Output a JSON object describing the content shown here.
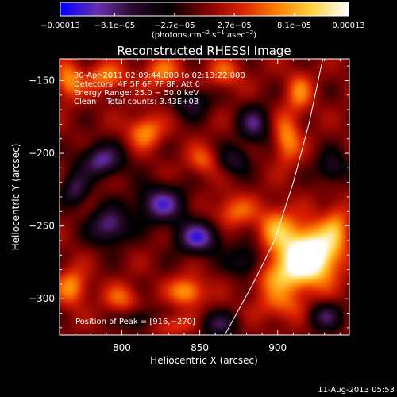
{
  "chart_data": {
    "type": "heatmap",
    "title": "Reconstructed RHESSI Image",
    "xlabel": "Heliocentric X (arcsec)",
    "ylabel": "Heliocentric Y (arcsec)",
    "xlim": [
      760,
      946
    ],
    "ylim": [
      -325,
      -135
    ],
    "x_ticks": [
      800,
      850,
      900
    ],
    "y_ticks": [
      -150,
      -200,
      -250,
      -300
    ],
    "x_tick_labels": [
      "800",
      "850",
      "900"
    ],
    "y_tick_labels": [
      "−150",
      "−200",
      "−250",
      "−300"
    ],
    "colorbar": {
      "range": [
        -0.00013,
        0.00013
      ],
      "ticks": [
        -0.00013,
        -8.1e-05,
        -2.7e-05,
        2.7e-05,
        8.1e-05,
        0.00013
      ],
      "tick_labels": [
        "−0.00013",
        "−8.1e−05",
        "−2.7e−05",
        "2.7e−05",
        "8.1e−05",
        "0.00013"
      ],
      "units_prefix": "(photons cm",
      "units_exp1": "−2",
      "units_mid": " s",
      "units_exp2": "−1",
      "units_mid2": " asec",
      "units_exp3": "−2",
      "units_suffix": ")",
      "colormap": [
        "#0000ff",
        "#6a2fb0",
        "#2a0a2a",
        "#000000",
        "#7a0000",
        "#d81e00",
        "#ff7d00",
        "#ffd23c",
        "#ffffff"
      ]
    },
    "annotations": [
      "30-Apr-2011 02:09:44.000 to 02:13:22.000",
      "Detectors: 4F 5F 6F 7F 8F, Att 0",
      "Energy Range: 25.0 − 50.0 keV",
      "Clean    Total counts: 3.43E+03"
    ],
    "peak_label": "Position of Peak = [916,−270]",
    "peak": {
      "x": 916,
      "y": -270
    },
    "limb_curve": [
      [
        929,
        -135
      ],
      [
        920,
        -180
      ],
      [
        910,
        -220
      ],
      [
        898,
        -260
      ],
      [
        884,
        -290
      ],
      [
        866,
        -325
      ]
    ],
    "blobs": [
      {
        "x": 915,
        "y": -270,
        "v": 1.0,
        "sx": 12,
        "sy": 13
      },
      {
        "x": 928,
        "y": -270,
        "v": 0.55,
        "sx": 10,
        "sy": 15
      },
      {
        "x": 899,
        "y": -250,
        "v": 0.5,
        "sx": 8,
        "sy": 10
      },
      {
        "x": 900,
        "y": -285,
        "v": 0.45,
        "sx": 12,
        "sy": 9
      },
      {
        "x": 903,
        "y": -305,
        "v": 0.35,
        "sx": 12,
        "sy": 8
      },
      {
        "x": 906,
        "y": -190,
        "v": 0.55,
        "sx": 6,
        "sy": 12
      },
      {
        "x": 914,
        "y": -158,
        "v": 0.45,
        "sx": 6,
        "sy": 10
      },
      {
        "x": 872,
        "y": -240,
        "v": 0.42,
        "sx": 10,
        "sy": 8
      },
      {
        "x": 852,
        "y": -205,
        "v": 0.38,
        "sx": 7,
        "sy": 7
      },
      {
        "x": 842,
        "y": -295,
        "v": 0.62,
        "sx": 8,
        "sy": 7
      },
      {
        "x": 800,
        "y": -300,
        "v": 0.4,
        "sx": 8,
        "sy": 7
      },
      {
        "x": 768,
        "y": -292,
        "v": 0.55,
        "sx": 7,
        "sy": 9
      },
      {
        "x": 766,
        "y": -150,
        "v": 0.55,
        "sx": 6,
        "sy": 9
      },
      {
        "x": 790,
        "y": -148,
        "v": 0.5,
        "sx": 9,
        "sy": 7
      },
      {
        "x": 815,
        "y": -185,
        "v": 0.55,
        "sx": 8,
        "sy": 8
      },
      {
        "x": 826,
        "y": -145,
        "v": 0.45,
        "sx": 9,
        "sy": 8
      },
      {
        "x": 866,
        "y": -145,
        "v": 0.4,
        "sx": 8,
        "sy": 7
      },
      {
        "x": 830,
        "y": -318,
        "v": 0.35,
        "sx": 12,
        "sy": 5
      },
      {
        "x": 938,
        "y": -250,
        "v": 0.4,
        "sx": 6,
        "sy": 12
      },
      {
        "x": 787,
        "y": -205,
        "v": -0.7,
        "sx": 10,
        "sy": 8
      },
      {
        "x": 792,
        "y": -250,
        "v": -0.7,
        "sx": 9,
        "sy": 9
      },
      {
        "x": 825,
        "y": -235,
        "v": -0.75,
        "sx": 11,
        "sy": 9
      },
      {
        "x": 849,
        "y": -258,
        "v": -0.8,
        "sx": 10,
        "sy": 8
      },
      {
        "x": 770,
        "y": -225,
        "v": -0.55,
        "sx": 6,
        "sy": 8
      },
      {
        "x": 880,
        "y": -275,
        "v": -0.5,
        "sx": 8,
        "sy": 8
      },
      {
        "x": 885,
        "y": -180,
        "v": -0.6,
        "sx": 7,
        "sy": 9
      },
      {
        "x": 935,
        "y": -210,
        "v": -0.45,
        "sx": 7,
        "sy": 8
      },
      {
        "x": 930,
        "y": -312,
        "v": -0.55,
        "sx": 8,
        "sy": 7
      },
      {
        "x": 862,
        "y": -318,
        "v": -0.5,
        "sx": 9,
        "sy": 6
      },
      {
        "x": 812,
        "y": -315,
        "v": -0.45,
        "sx": 8,
        "sy": 6
      },
      {
        "x": 845,
        "y": -165,
        "v": -0.5,
        "sx": 8,
        "sy": 7
      },
      {
        "x": 872,
        "y": -205,
        "v": -0.45,
        "sx": 7,
        "sy": 7
      }
    ]
  },
  "footer": {
    "date": "11-Aug-2013 05:53"
  }
}
